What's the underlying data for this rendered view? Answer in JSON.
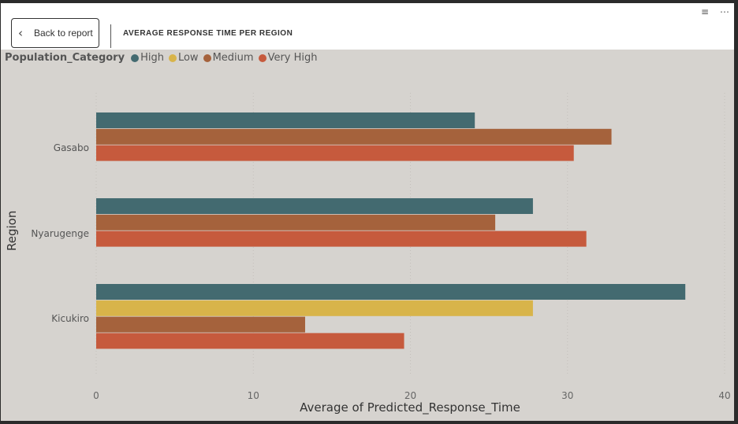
{
  "header": {
    "back_label": "Back to report",
    "title": "AVERAGE RESPONSE TIME PER REGION"
  },
  "icons": [
    "filter-icon",
    "more-options-icon"
  ],
  "legend": {
    "title": "Population_Category",
    "items": [
      {
        "label": "High",
        "color": "#436a70"
      },
      {
        "label": "Low",
        "color": "#d8b44a"
      },
      {
        "label": "Medium",
        "color": "#a5623c"
      },
      {
        "label": "Very High",
        "color": "#c65a3d"
      }
    ]
  },
  "chart_data": {
    "type": "bar",
    "orientation": "horizontal",
    "categories": [
      "Gasabo",
      "Nyarugenge",
      "Kicukiro"
    ],
    "series": [
      {
        "name": "High",
        "color": "#436a70",
        "values": [
          24.1,
          27.8,
          37.5
        ]
      },
      {
        "name": "Low",
        "color": "#d8b44a",
        "values": [
          null,
          null,
          27.8
        ]
      },
      {
        "name": "Medium",
        "color": "#a5623c",
        "values": [
          32.8,
          25.4,
          13.3
        ]
      },
      {
        "name": "Very High",
        "color": "#c65a3d",
        "values": [
          30.4,
          31.2,
          19.6
        ]
      }
    ],
    "xlabel": "Average of Predicted_Response_Time",
    "ylabel": "Region",
    "xlim": [
      0,
      40
    ],
    "xticks": [
      0,
      10,
      20,
      30,
      40
    ],
    "grid": true,
    "legend_position": "top-left"
  }
}
